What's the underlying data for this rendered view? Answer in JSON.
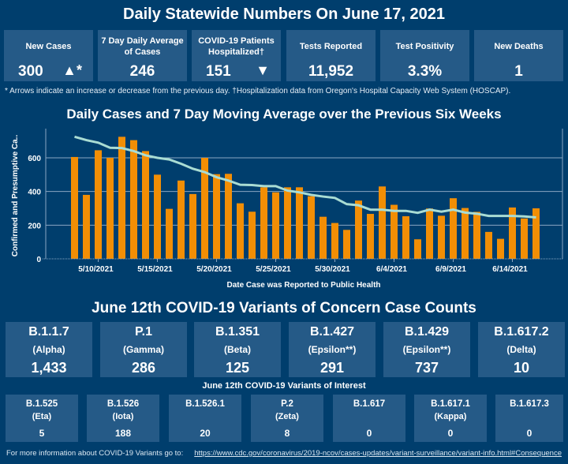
{
  "header": {
    "title": "Daily Statewide Numbers On June 17, 2021"
  },
  "kpis": [
    {
      "label": "New Cases",
      "value": "300",
      "arrow": "▲*",
      "arrow_icon": "up-arrow"
    },
    {
      "label": "7 Day Daily Average of Cases",
      "value": "246"
    },
    {
      "label": "COVID-19 Patients Hospitalized†",
      "value": "151",
      "arrow": "▼",
      "arrow_icon": "down-arrow"
    },
    {
      "label": "Tests Reported",
      "value": "11,952"
    },
    {
      "label": "Test Positivity",
      "value": "3.3%"
    },
    {
      "label": "New Deaths",
      "value": "1"
    }
  ],
  "footnote": "* Arrows indicate an increase or decrease from the previous day. †Hospitalization data from Oregon's Hospital Capacity Web System (HOSCAP).",
  "chart_data": {
    "type": "bar",
    "title": "Daily Cases and 7 Day Moving Average over the Previous Six Weeks",
    "xlabel": "Date Case was Reported to Public Health",
    "ylabel": "Confirmed and Presumptive Ca..",
    "ylim": [
      0,
      750
    ],
    "yticks": [
      0,
      200,
      400,
      600
    ],
    "grid": true,
    "x_start": "5/8/2021",
    "xtick_labels": [
      "5/10/2021",
      "5/15/2021",
      "5/20/2021",
      "5/25/2021",
      "5/30/2021",
      "6/4/2021",
      "6/9/2021",
      "6/14/2021"
    ],
    "xtick_index": [
      2,
      7,
      12,
      17,
      22,
      27,
      32,
      37
    ],
    "colors": {
      "bars": "#f28e05",
      "line": "#a9dcd3"
    },
    "series": [
      {
        "type": "bar",
        "values": [
          605,
          380,
          645,
          600,
          725,
          705,
          640,
          500,
          297,
          465,
          385,
          600,
          503,
          505,
          330,
          280,
          425,
          395,
          425,
          425,
          372,
          250,
          213,
          172,
          346,
          267,
          430,
          321,
          253,
          116,
          299,
          256,
          360,
          302,
          279,
          160,
          119,
          305,
          240,
          300
        ]
      },
      {
        "type": "line",
        "values": [
          725,
          705,
          690,
          660,
          658,
          640,
          615,
          600,
          590,
          565,
          535,
          515,
          485,
          465,
          440,
          438,
          432,
          432,
          405,
          395,
          380,
          370,
          362,
          325,
          318,
          292,
          292,
          285,
          285,
          273,
          292,
          280,
          292,
          275,
          268,
          255,
          255,
          255,
          252,
          246
        ]
      }
    ]
  },
  "variants": {
    "title": "June 12th  COVID-19 Variants of Concern Case Counts",
    "concern": [
      {
        "name": "B.1.1.7",
        "greek": "(Alpha)",
        "count": "1,433"
      },
      {
        "name": "P.1",
        "greek": "(Gamma)",
        "count": "286"
      },
      {
        "name": "B.1.351",
        "greek": "(Beta)",
        "count": "125"
      },
      {
        "name": "B.1.427",
        "greek": "(Epsilon**)",
        "count": "291"
      },
      {
        "name": "B.1.429",
        "greek": "(Epsilon**)",
        "count": "737"
      },
      {
        "name": "B.1.617.2",
        "greek": "(Delta)",
        "count": "10"
      }
    ],
    "interest_title": "June 12th COVID-19 Variants of Interest",
    "interest": [
      {
        "name": "B.1.525",
        "greek": "(Eta)",
        "count": "5"
      },
      {
        "name": "B.1.526",
        "greek": "(Iota)",
        "count": "188"
      },
      {
        "name": "B.1.526.1",
        "greek": "",
        "count": "20"
      },
      {
        "name": "P.2",
        "greek": "(Zeta)",
        "count": "8"
      },
      {
        "name": "B.1.617",
        "greek": "",
        "count": "0"
      },
      {
        "name": "B.1.617.1",
        "greek": "(Kappa)",
        "count": "0"
      },
      {
        "name": "B.1.617.3",
        "greek": "",
        "count": "0"
      }
    ]
  },
  "footer": {
    "text": "For more information about COVID-19 Variants go to:",
    "link": "https://www.cdc.gov/coronavirus/2019-ncov/cases-updates/variant-surveillance/variant-info.html#Consequence"
  }
}
